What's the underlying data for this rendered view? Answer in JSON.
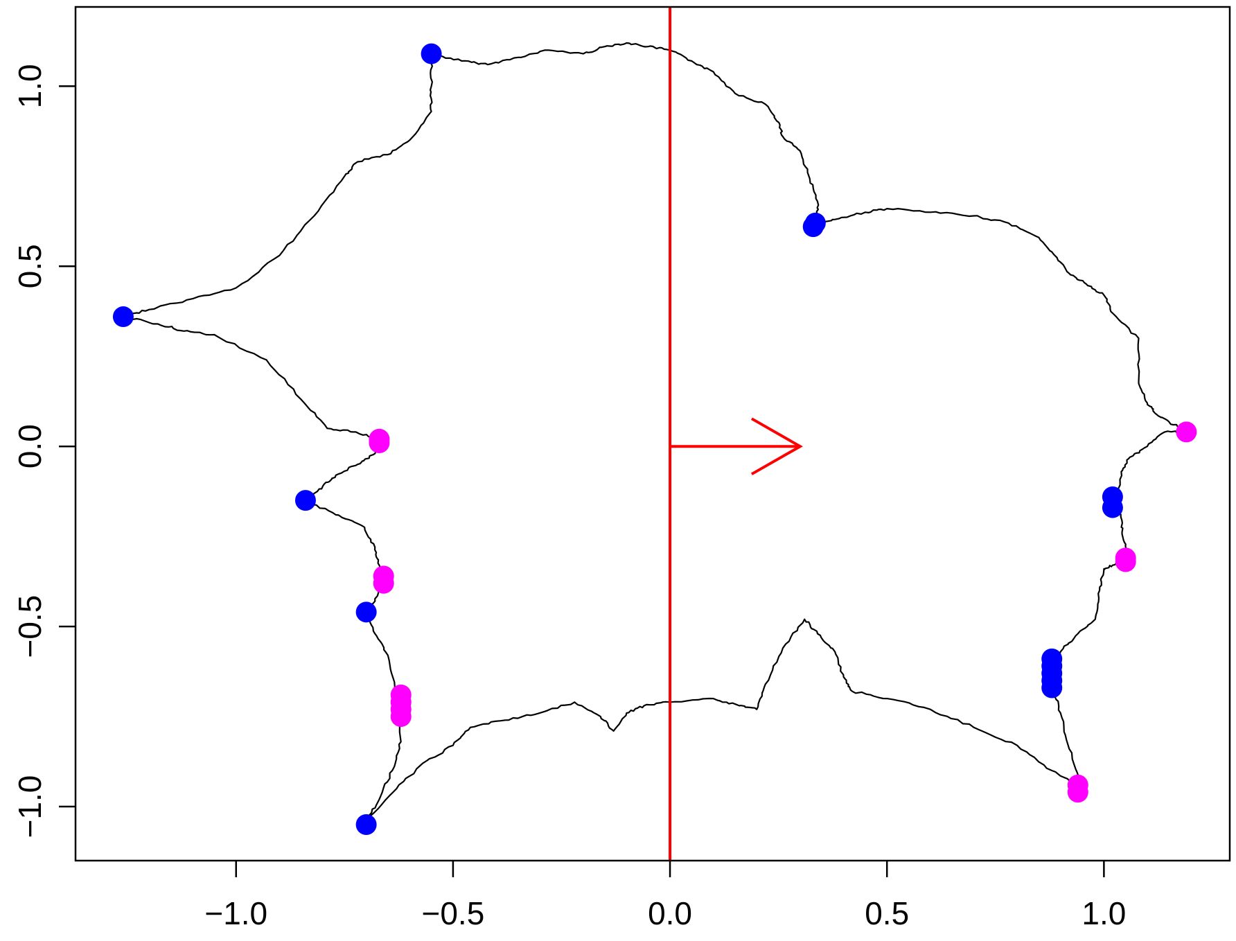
{
  "chart_data": {
    "type": "scatter",
    "title": "",
    "xlabel": "",
    "ylabel": "",
    "xlim": [
      -1.37,
      1.29
    ],
    "ylim": [
      -1.15,
      1.22
    ],
    "x_ticks": [
      -1.0,
      -0.5,
      0.0,
      0.5,
      1.0
    ],
    "y_ticks": [
      -1.0,
      -0.5,
      0.0,
      0.5,
      1.0
    ],
    "x_tick_labels": [
      "−1.0",
      "−0.5",
      "0.0",
      "0.5",
      "1.0"
    ],
    "y_tick_labels": [
      "−1.0",
      "−0.5",
      "0.0",
      "0.5",
      "1.0"
    ],
    "grid": false,
    "legend": "none",
    "colors": {
      "outline": "#000000",
      "blue_points": "#0000ff",
      "magenta_points": "#ff00ff",
      "red_guides": "#ff0000"
    },
    "outline": [
      [
        -0.55,
        1.09
      ],
      [
        -0.48,
        1.07
      ],
      [
        -0.42,
        1.06
      ],
      [
        -0.35,
        1.08
      ],
      [
        -0.28,
        1.1
      ],
      [
        -0.2,
        1.09
      ],
      [
        -0.15,
        1.11
      ],
      [
        -0.1,
        1.12
      ],
      [
        -0.05,
        1.11
      ],
      [
        0.0,
        1.1
      ],
      [
        0.05,
        1.07
      ],
      [
        0.1,
        1.04
      ],
      [
        0.15,
        0.98
      ],
      [
        0.22,
        0.95
      ],
      [
        0.25,
        0.9
      ],
      [
        0.26,
        0.86
      ],
      [
        0.3,
        0.82
      ],
      [
        0.32,
        0.75
      ],
      [
        0.34,
        0.68
      ],
      [
        0.34,
        0.62
      ],
      [
        0.38,
        0.63
      ],
      [
        0.45,
        0.65
      ],
      [
        0.5,
        0.66
      ],
      [
        0.6,
        0.65
      ],
      [
        0.7,
        0.64
      ],
      [
        0.78,
        0.62
      ],
      [
        0.85,
        0.58
      ],
      [
        0.88,
        0.54
      ],
      [
        0.92,
        0.48
      ],
      [
        0.96,
        0.45
      ],
      [
        1.0,
        0.42
      ],
      [
        1.02,
        0.37
      ],
      [
        1.08,
        0.3
      ],
      [
        1.08,
        0.18
      ],
      [
        1.1,
        0.12
      ],
      [
        1.12,
        0.09
      ],
      [
        1.16,
        0.06
      ],
      [
        1.2,
        0.04
      ],
      [
        1.14,
        0.04
      ],
      [
        1.1,
        0.0
      ],
      [
        1.06,
        -0.03
      ],
      [
        1.04,
        -0.07
      ],
      [
        1.03,
        -0.15
      ],
      [
        1.04,
        -0.2
      ],
      [
        1.045,
        -0.26
      ],
      [
        1.06,
        -0.31
      ],
      [
        1.02,
        -0.33
      ],
      [
        1.0,
        -0.34
      ],
      [
        0.99,
        -0.4
      ],
      [
        0.98,
        -0.48
      ],
      [
        0.94,
        -0.52
      ],
      [
        0.9,
        -0.57
      ],
      [
        0.89,
        -0.62
      ],
      [
        0.88,
        -0.66
      ],
      [
        0.9,
        -0.74
      ],
      [
        0.92,
        -0.84
      ],
      [
        0.95,
        -0.95
      ],
      [
        0.88,
        -0.9
      ],
      [
        0.8,
        -0.83
      ],
      [
        0.7,
        -0.78
      ],
      [
        0.6,
        -0.73
      ],
      [
        0.5,
        -0.7
      ],
      [
        0.42,
        -0.68
      ],
      [
        0.4,
        -0.64
      ],
      [
        0.38,
        -0.57
      ],
      [
        0.34,
        -0.52
      ],
      [
        0.31,
        -0.48
      ],
      [
        0.26,
        -0.56
      ],
      [
        0.22,
        -0.66
      ],
      [
        0.2,
        -0.73
      ],
      [
        0.16,
        -0.72
      ],
      [
        0.1,
        -0.7
      ],
      [
        0.0,
        -0.71
      ],
      [
        -0.06,
        -0.72
      ],
      [
        -0.1,
        -0.74
      ],
      [
        -0.13,
        -0.79
      ],
      [
        -0.16,
        -0.75
      ],
      [
        -0.22,
        -0.71
      ],
      [
        -0.3,
        -0.74
      ],
      [
        -0.38,
        -0.76
      ],
      [
        -0.46,
        -0.78
      ],
      [
        -0.5,
        -0.83
      ],
      [
        -0.57,
        -0.88
      ],
      [
        -0.63,
        -0.95
      ],
      [
        -0.7,
        -1.04
      ],
      [
        -0.67,
        -0.98
      ],
      [
        -0.64,
        -0.9
      ],
      [
        -0.62,
        -0.82
      ],
      [
        -0.625,
        -0.74
      ],
      [
        -0.63,
        -0.68
      ],
      [
        -0.65,
        -0.58
      ],
      [
        -0.68,
        -0.52
      ],
      [
        -0.7,
        -0.46
      ],
      [
        -0.68,
        -0.43
      ],
      [
        -0.665,
        -0.37
      ],
      [
        -0.67,
        -0.33
      ],
      [
        -0.68,
        -0.28
      ],
      [
        -0.71,
        -0.22
      ],
      [
        -0.77,
        -0.19
      ],
      [
        -0.84,
        -0.15
      ],
      [
        -0.8,
        -0.11
      ],
      [
        -0.77,
        -0.08
      ],
      [
        -0.72,
        -0.05
      ],
      [
        -0.68,
        -0.02
      ],
      [
        -0.67,
        0.02
      ],
      [
        -0.73,
        0.04
      ],
      [
        -0.79,
        0.05
      ],
      [
        -0.85,
        0.13
      ],
      [
        -0.93,
        0.24
      ],
      [
        -1.05,
        0.31
      ],
      [
        -1.12,
        0.32
      ],
      [
        -1.18,
        0.34
      ],
      [
        -1.26,
        0.36
      ],
      [
        -1.2,
        0.38
      ],
      [
        -1.1,
        0.41
      ],
      [
        -1.0,
        0.44
      ],
      [
        -0.9,
        0.53
      ],
      [
        -0.82,
        0.64
      ],
      [
        -0.75,
        0.75
      ],
      [
        -0.72,
        0.79
      ],
      [
        -0.65,
        0.81
      ],
      [
        -0.6,
        0.85
      ],
      [
        -0.55,
        0.93
      ],
      [
        -0.55,
        1.0
      ],
      [
        -0.55,
        1.09
      ]
    ],
    "series": [
      {
        "color": "blue",
        "points": [
          [
            -0.55,
            1.09
          ],
          [
            0.33,
            0.61
          ],
          [
            0.335,
            0.62
          ],
          [
            -1.26,
            0.36
          ],
          [
            -0.84,
            -0.15
          ],
          [
            -0.7,
            -0.46
          ],
          [
            -0.7,
            -1.05
          ],
          [
            1.02,
            -0.14
          ],
          [
            1.02,
            -0.17
          ],
          [
            0.88,
            -0.59
          ],
          [
            0.88,
            -0.61
          ],
          [
            0.88,
            -0.63
          ],
          [
            0.88,
            -0.65
          ],
          [
            0.88,
            -0.67
          ]
        ]
      },
      {
        "color": "magenta",
        "points": [
          [
            -0.67,
            0.02
          ],
          [
            -0.67,
            0.01
          ],
          [
            -0.66,
            -0.36
          ],
          [
            -0.66,
            -0.38
          ],
          [
            -0.62,
            -0.69
          ],
          [
            -0.62,
            -0.71
          ],
          [
            -0.62,
            -0.73
          ],
          [
            -0.62,
            -0.75
          ],
          [
            1.19,
            0.04
          ],
          [
            1.05,
            -0.31
          ],
          [
            1.05,
            -0.32
          ],
          [
            0.94,
            -0.94
          ],
          [
            0.94,
            -0.96
          ]
        ]
      }
    ],
    "guides": {
      "vertical_line_x": 0.0,
      "arrow": {
        "from": [
          0.0,
          0.0
        ],
        "to": [
          0.3,
          0.0
        ]
      }
    }
  }
}
